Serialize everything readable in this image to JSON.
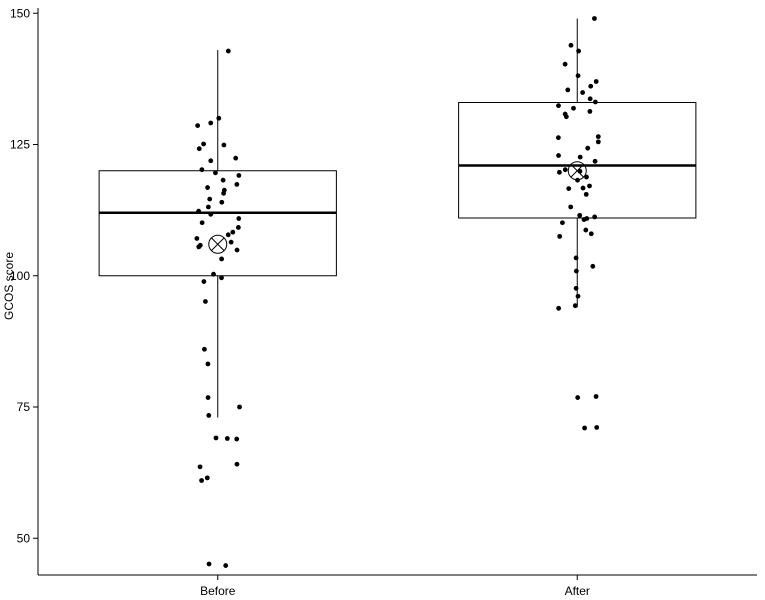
{
  "chart_data": {
    "type": "boxplot",
    "title": "",
    "xlabel": "",
    "ylabel": "GCOS score",
    "ylim": [
      43,
      151
    ],
    "yticks": [
      50,
      75,
      100,
      125,
      150
    ],
    "grid": false,
    "legend": "none",
    "categories": [
      "Before",
      "After"
    ],
    "boxes": [
      {
        "category": "Before",
        "whisker_low": 73,
        "q1": 100,
        "median": 112,
        "q3": 120,
        "whisker_high": 143,
        "mean": 106,
        "points": [
          142.8,
          130,
          129.1,
          128.6,
          125.1,
          124.9,
          124.2,
          122.4,
          121.9,
          120.2,
          119.6,
          119.1,
          118.2,
          117.4,
          116.8,
          116.3,
          115.7,
          114.6,
          114,
          113.1,
          112.3,
          111.7,
          110.9,
          110.1,
          109.2,
          108.3,
          107.8,
          107.1,
          106.4,
          105.8,
          105.5,
          104.9,
          103.2,
          100.3,
          99.6,
          98.9,
          95.1,
          86,
          83.2,
          76.8,
          75,
          73.4,
          69.1,
          69,
          68.9,
          64.1,
          63.6,
          61.5,
          61,
          45.1,
          44.8
        ]
      },
      {
        "category": "After",
        "whisker_low": 94,
        "q1": 111,
        "median": 121,
        "q3": 133,
        "whisker_high": 149,
        "mean": 120,
        "points": [
          149,
          143.9,
          142.8,
          140.3,
          138.1,
          137,
          136.1,
          135.4,
          134.9,
          133.7,
          133.1,
          132.4,
          131.9,
          131.3,
          130.8,
          130.3,
          126.5,
          126.3,
          125.5,
          124.3,
          122.9,
          122.6,
          121.8,
          120.2,
          119.9,
          119.7,
          118.8,
          118.2,
          117.1,
          116.7,
          116.6,
          115.5,
          113.1,
          111.5,
          111.2,
          110.9,
          110.7,
          110.1,
          108.7,
          108,
          107.5,
          103.4,
          101.8,
          100.9,
          97.6,
          96.1,
          94.3,
          93.8,
          77,
          76.8,
          71.1,
          71
        ]
      }
    ]
  }
}
